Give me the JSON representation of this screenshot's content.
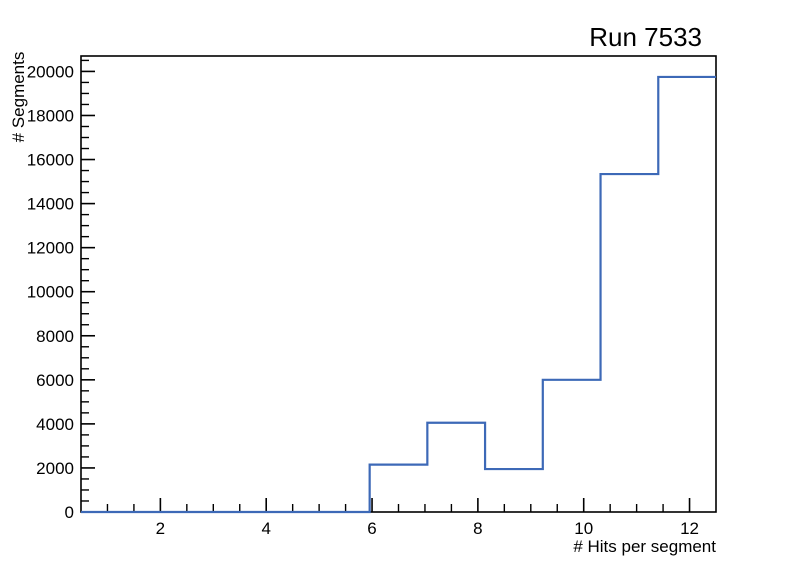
{
  "page": {
    "background": "#ffffff"
  },
  "chart_data": {
    "type": "histogram-step",
    "title": "Run 7533",
    "xlabel": "# Hits per segment",
    "ylabel": "# Segments",
    "xlim": [
      0.5,
      12.5
    ],
    "ylim": [
      0,
      20700
    ],
    "x_major_ticks": [
      2,
      4,
      6,
      8,
      10,
      12
    ],
    "x_tick_labels": [
      "2",
      "4",
      "6",
      "8",
      "10",
      "12"
    ],
    "x_minor_step": 0.5,
    "y_major_ticks": [
      0,
      2000,
      4000,
      6000,
      8000,
      10000,
      12000,
      14000,
      16000,
      18000,
      20000
    ],
    "y_tick_labels": [
      "0",
      "2000",
      "4000",
      "6000",
      "8000",
      "10000",
      "12000",
      "14000",
      "16000",
      "18000",
      "20000"
    ],
    "y_minor_step": 500,
    "bin_edges": [
      0.5,
      1.591,
      2.682,
      3.773,
      4.864,
      5.955,
      7.045,
      8.136,
      9.227,
      10.318,
      11.409,
      12.5
    ],
    "counts": [
      0,
      0,
      0,
      0,
      0,
      2150,
      4050,
      1950,
      6000,
      15340,
      19750
    ],
    "line_color": "#3d69b7",
    "axis_color": "#000000",
    "grid": false,
    "legend_position": "none"
  }
}
